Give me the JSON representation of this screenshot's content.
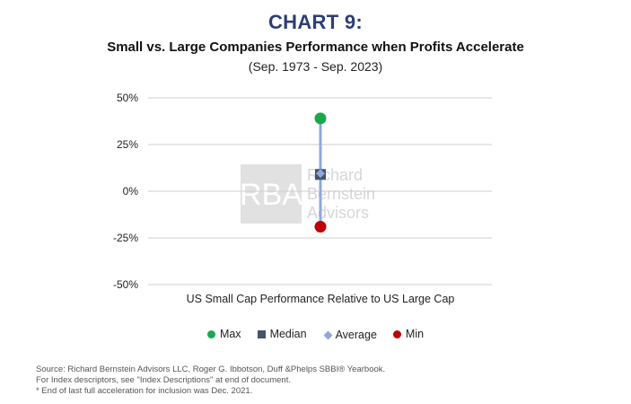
{
  "heading": "CHART 9:",
  "chart_data": {
    "type": "range",
    "title": "Small vs. Large Companies Performance when Profits Accelerate",
    "subtitle": "(Sep. 1973 -  Sep. 2023)",
    "categories": [
      "US Small Cap Performance Relative to US Large Cap"
    ],
    "ylim": [
      -50,
      50
    ],
    "yticks": [
      50,
      25,
      0,
      -25,
      -50
    ],
    "ytick_labels": [
      "50%",
      "25%",
      "0%",
      "-25%",
      "-50%"
    ],
    "grid": true,
    "series": [
      {
        "name": "Max",
        "marker": "circle",
        "color": "#1aa84f",
        "values": [
          39
        ]
      },
      {
        "name": "Median",
        "marker": "square",
        "color": "#44546a",
        "values": [
          9
        ]
      },
      {
        "name": "Average",
        "marker": "diamond",
        "color": "#8fa8d9",
        "values": [
          9.5
        ]
      },
      {
        "name": "Min",
        "marker": "circle",
        "color": "#c00000",
        "values": [
          -19
        ]
      }
    ],
    "range_line_color": "#8fa8d9",
    "legend_position": "bottom"
  },
  "watermark": {
    "logo_text": "RBA",
    "line1": "Richard",
    "line2": "Bernstein",
    "line3": "Advisors"
  },
  "source": {
    "line1": "Source: Richard Bernstein Advisors LLC, Roger G. Ibbotson, Duff &Phelps SBBI® Yearbook.",
    "line2": "For Index descriptors, see \"Index Descriptions\" at end of document.",
    "line3": "* End of last full acceleration for inclusion was Dec. 2021."
  }
}
